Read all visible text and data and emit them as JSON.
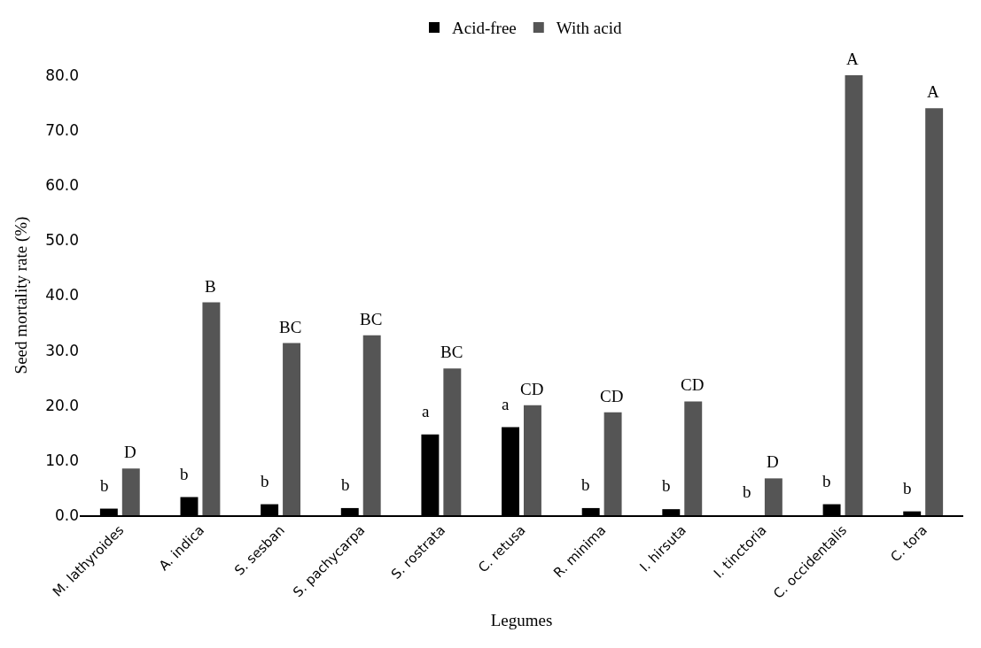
{
  "chart_data": {
    "type": "bar",
    "xlabel": "Legumes",
    "ylabel": "Seed mortality rate (%)",
    "categories": [
      "M. lathyroides",
      "A. indica",
      "S. sesban",
      "S. pachycarpa",
      "S. rostrata",
      "C. retusa",
      "R. minima",
      "I. hirsuta",
      "I. tinctoria",
      "C. occidentalis",
      "C. tora"
    ],
    "series": [
      {
        "name": "Acid-free",
        "color": "#000000",
        "values": [
          1.2,
          3.3,
          2.0,
          1.3,
          14.7,
          16.0,
          1.3,
          1.1,
          0.0,
          2.0,
          0.7
        ]
      },
      {
        "name": "With acid",
        "color": "#555555",
        "values": [
          8.5,
          38.7,
          31.3,
          32.7,
          26.7,
          20.0,
          18.7,
          20.7,
          6.7,
          80.0,
          74.0
        ]
      }
    ],
    "ylim": [
      0,
      80
    ],
    "yticks": [
      {
        "value": 0,
        "label": "0.0"
      },
      {
        "value": 10,
        "label": "10.0"
      },
      {
        "value": 20,
        "label": "20.0"
      },
      {
        "value": 30,
        "label": "30.0"
      },
      {
        "value": 40,
        "label": "40.0"
      },
      {
        "value": 50,
        "label": "50.0"
      },
      {
        "value": 60,
        "label": "60.0"
      },
      {
        "value": 70,
        "label": "70.0"
      },
      {
        "value": 80,
        "label": "80.0"
      }
    ],
    "legend": "top",
    "annotations": [
      {
        "text": "b",
        "x": "M. lathyroides",
        "y": 1.2
      },
      {
        "text": "D",
        "x": "M. lathyroides",
        "y": 8.5
      },
      {
        "text": "b",
        "x": "A. indica",
        "y": 3.3
      },
      {
        "text": "B",
        "x": "A. indica",
        "y": 38.7
      },
      {
        "text": "b",
        "x": "S. sesban",
        "y": 2.0
      },
      {
        "text": "BC",
        "x": "S. sesban",
        "y": 31.3
      },
      {
        "text": "b",
        "x": "S. pachycarpa",
        "y": 1.3
      },
      {
        "text": "BC",
        "x": "S. pachycarpa",
        "y": 32.7
      },
      {
        "text": "a",
        "x": "S. rostrata",
        "y": 14.7
      },
      {
        "text": "BC",
        "x": "S. rostrata",
        "y": 26.7
      },
      {
        "text": "a",
        "x": "C. retusa",
        "y": 16.0
      },
      {
        "text": "CD",
        "x": "C. retusa",
        "y": 20.0
      },
      {
        "text": "b",
        "x": "R. minima",
        "y": 1.3
      },
      {
        "text": "CD",
        "x": "R. minima",
        "y": 18.7
      },
      {
        "text": "b",
        "x": "I. hirsuta",
        "y": 1.1
      },
      {
        "text": "CD",
        "x": "I. hirsuta",
        "y": 20.7
      },
      {
        "text": "b",
        "x": "I. tinctoria",
        "y": 0.0
      },
      {
        "text": "D",
        "x": "I. tinctoria",
        "y": 6.7
      },
      {
        "text": "b",
        "x": "C. occidentalis",
        "y": 2.0
      },
      {
        "text": "A",
        "x": "C. occidentalis",
        "y": 80.0
      },
      {
        "text": "b",
        "x": "C. tora",
        "y": 0.7
      },
      {
        "text": "A",
        "x": "C. tora",
        "y": 74.0
      }
    ]
  }
}
